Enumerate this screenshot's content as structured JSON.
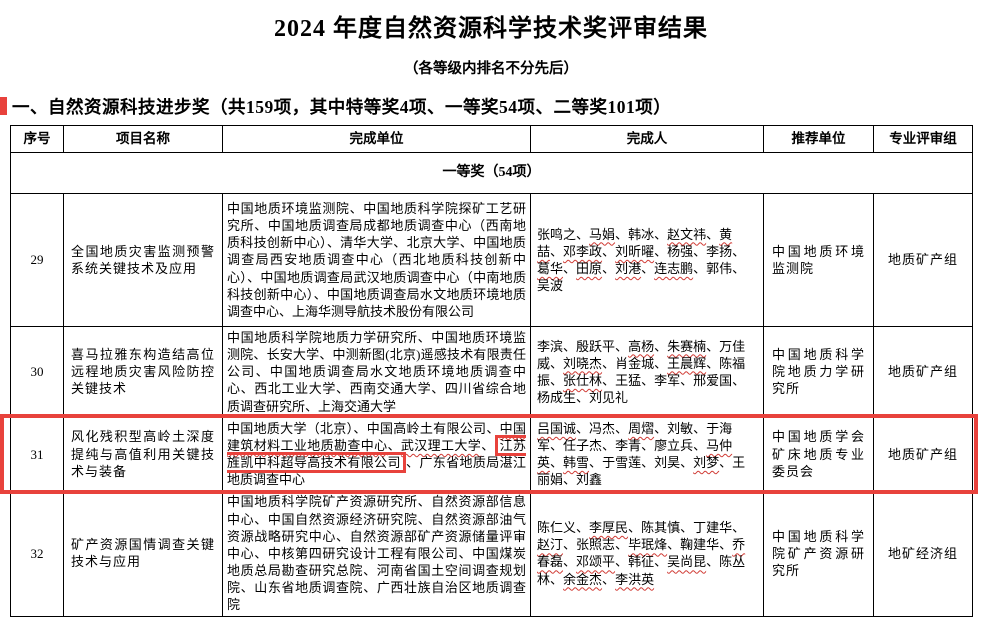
{
  "title": "2024 年度自然资源科学技术奖评审结果",
  "subtitle": "（各等级内排名不分先后）",
  "section_heading": "一、自然资源科技进步奖（共159项，其中特等奖4项、一等奖54项、二等奖101项）",
  "colors": {
    "highlight_red": "#e8423c",
    "spellcheck_red": "#d03a34"
  },
  "table": {
    "headers": [
      "序号",
      "项目名称",
      "完成单位",
      "完成人",
      "推荐单位",
      "专业评审组"
    ],
    "group_row": "一等奖（54项）",
    "rows": [
      {
        "no": "29",
        "project": "全国地质灾害监测预警系统关键技术及应用",
        "units": [
          {
            "t": "中国地质环境监测院"
          },
          {
            "t": "中国地质科学院探矿工艺研究所"
          },
          {
            "t": "中国地质调查局成都地质调查中心（西南地质科技创新中心）"
          },
          {
            "t": "清华大学"
          },
          {
            "t": "北京大学"
          },
          {
            "t": "中国地质调查局西安地质调查中心（西北地质科技创新中心）"
          },
          {
            "t": "中国地质调查局武汉地质调查中心（中南地质科技创新中心）"
          },
          {
            "t": "中国地质调查局水文地质环境地质调查中心"
          },
          {
            "t": "上海华测导航技术股份有限公司"
          }
        ],
        "people": [
          {
            "t": "张鸣之"
          },
          {
            "t": "马娟",
            "u": true
          },
          {
            "t": "韩冰"
          },
          {
            "t": "赵文祎",
            "u": true
          },
          {
            "t": "黄喆",
            "u": true
          },
          {
            "t": "邓李政",
            "u": true
          },
          {
            "t": "刘昕曜",
            "u": true
          },
          {
            "t": "杨强"
          },
          {
            "t": "李扬"
          },
          {
            "t": "葛华",
            "u": true
          },
          {
            "t": "田原",
            "u": true
          },
          {
            "t": "刘港",
            "u": true
          },
          {
            "t": "连志鹏",
            "u": true
          },
          {
            "t": "郭伟"
          },
          {
            "t": "吴波"
          }
        ],
        "recommender": "中国地质环境监测院",
        "panel": "地质矿产组",
        "highlighted": false
      },
      {
        "no": "30",
        "project": "喜马拉雅东构造结高位远程地质灾害风险防控关键技术",
        "units": [
          {
            "t": "中国地质科学院地质力学研究所"
          },
          {
            "t": "中国地质环境监测院"
          },
          {
            "t": "长安大学"
          },
          {
            "t": "中测新图(北京)遥感技术有限责任公司"
          },
          {
            "t": "中国地质调查局水文地质环境地质调查中心"
          },
          {
            "t": "西北工业大学"
          },
          {
            "t": "西南交通大学"
          },
          {
            "t": "四川省综合地质调查研究所"
          },
          {
            "t": "上海交通大学"
          }
        ],
        "people": [
          {
            "t": "李滨"
          },
          {
            "t": "殷跃平"
          },
          {
            "t": "高杨",
            "u": true
          },
          {
            "t": "朱赛楠",
            "u": true
          },
          {
            "t": "万佳威"
          },
          {
            "t": "刘晓杰",
            "u": true
          },
          {
            "t": "肖金城"
          },
          {
            "t": "王晨辉",
            "u": true
          },
          {
            "t": "陈福振"
          },
          {
            "t": "张仕林",
            "u": true
          },
          {
            "t": "王猛"
          },
          {
            "t": "李军"
          },
          {
            "t": "邢爱国"
          },
          {
            "t": "杨成生"
          },
          {
            "t": "刘见礼"
          }
        ],
        "recommender": "中国地质科学院地质力学研究所",
        "panel": "地质矿产组",
        "highlighted": false
      },
      {
        "no": "31",
        "project": "风化残积型高岭土深度提纯与高值利用关键技术与装备",
        "units": [
          {
            "t": "中国地质大学（北京）"
          },
          {
            "t": "中国高岭土有限公司"
          },
          {
            "t": "中国建筑材料工业地质勘查中心",
            "u": true
          },
          {
            "t": "武汉理工大学",
            "u": true
          },
          {
            "t": "江苏旌凯中科超导高技术有限公司",
            "box": true
          },
          {
            "t": "广东省地质局湛江地质调查中心"
          }
        ],
        "people": [
          {
            "t": "吕国诚",
            "u": true
          },
          {
            "t": "冯杰"
          },
          {
            "t": "周熠",
            "u": true
          },
          {
            "t": "刘敏"
          },
          {
            "t": "于海军"
          },
          {
            "t": "任子杰"
          },
          {
            "t": "李青"
          },
          {
            "t": "廖立兵"
          },
          {
            "t": "马仲英",
            "u": true
          },
          {
            "t": "韩雪",
            "u": true
          },
          {
            "t": "于雪莲"
          },
          {
            "t": "刘昊"
          },
          {
            "t": "刘梦",
            "u": true
          },
          {
            "t": "王丽娟"
          },
          {
            "t": "刘鑫"
          }
        ],
        "recommender": "中国地质学会矿床地质专业委员会",
        "panel": "地质矿产组",
        "highlighted": true
      },
      {
        "no": "32",
        "project": "矿产资源国情调查关键技术与应用",
        "units": [
          {
            "t": "中国地质科学院矿产资源研究所"
          },
          {
            "t": "自然资源部信息中心"
          },
          {
            "t": "中国自然资源经济研究院"
          },
          {
            "t": "自然资源部油气资源战略研究中心"
          },
          {
            "t": "自然资源部矿产资源储量评审中心"
          },
          {
            "t": "中核第四研究设计工程有限公司"
          },
          {
            "t": "中国煤炭地质总局勘查研究总院"
          },
          {
            "t": "河南省国土空间调查规划院"
          },
          {
            "t": "山东省地质调查院"
          },
          {
            "t": "广西壮族自治区地质调查院"
          }
        ],
        "people": [
          {
            "t": "陈仁义"
          },
          {
            "t": "李厚民",
            "u": true
          },
          {
            "t": "陈其慎"
          },
          {
            "t": "丁建华"
          },
          {
            "t": "赵汀",
            "u": true
          },
          {
            "t": "张照志"
          },
          {
            "t": "毕珉烽",
            "u": true
          },
          {
            "t": "鞠建华"
          },
          {
            "t": "乔春磊",
            "u": true
          },
          {
            "t": "邓颂平",
            "u": true
          },
          {
            "t": "韩征"
          },
          {
            "t": "吴尚昆",
            "u": true
          },
          {
            "t": "陈丛林"
          },
          {
            "t": "余金杰",
            "u": true
          },
          {
            "t": "李洪英",
            "u": true
          }
        ],
        "recommender": "中国地质科学院矿产资源研究所",
        "panel": "地矿经济组",
        "highlighted": false
      }
    ]
  }
}
